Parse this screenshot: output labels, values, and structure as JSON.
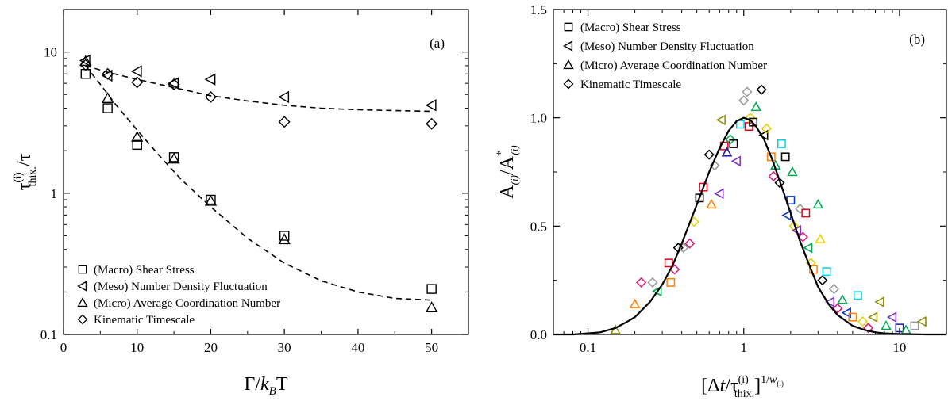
{
  "chart_data": [
    {
      "type": "scatter",
      "panel_label": "(a)",
      "xlabel": {
        "main": "Γ/",
        "k": "k",
        "sub": "B",
        "end": "T"
      },
      "ylabel": {
        "main": "τ",
        "sup": "(i)",
        "sub": "thix.",
        "end": "/τ"
      },
      "xlim": [
        0,
        55
      ],
      "ylim": [
        0.1,
        20
      ],
      "yscale": "log",
      "xticks": [
        0,
        10,
        20,
        30,
        40,
        50
      ],
      "xtick_labels": [
        "0",
        "10",
        "20",
        "30",
        "40",
        "50"
      ],
      "yticks": [
        0.1,
        1,
        10
      ],
      "ytick_labels": [
        "0.1",
        "1",
        "10"
      ],
      "legend_position": "bottom-left",
      "series": [
        {
          "name": "(Macro) Shear Stress",
          "marker": "square",
          "x": [
            3,
            6,
            10,
            15,
            20,
            30,
            50
          ],
          "y": [
            7.0,
            4.0,
            2.2,
            1.8,
            0.9,
            0.5,
            0.21
          ]
        },
        {
          "name": "(Meso) Number Density Fluctuation",
          "marker": "triangle-left",
          "x": [
            3,
            6,
            10,
            15,
            20,
            30,
            50
          ],
          "y": [
            8.7,
            6.8,
            7.3,
            6.0,
            6.4,
            4.8,
            4.2
          ]
        },
        {
          "name": "(Micro) Average Coordination Number",
          "marker": "triangle-up",
          "x": [
            3,
            6,
            10,
            15,
            20,
            30,
            50
          ],
          "y": [
            8.6,
            4.7,
            2.5,
            1.75,
            0.88,
            0.47,
            0.155
          ]
        },
        {
          "name": "Kinematic Timescale",
          "marker": "diamond",
          "x": [
            3,
            6,
            10,
            15,
            20,
            30,
            50
          ],
          "y": [
            8.1,
            7.0,
            6.1,
            5.9,
            4.8,
            3.2,
            3.1
          ]
        }
      ],
      "fits": [
        {
          "style": "dashed",
          "x": [
            3,
            5,
            7,
            10,
            13,
            16,
            20,
            25,
            30,
            35,
            40,
            45,
            50
          ],
          "y": [
            8.0,
            5.9,
            4.3,
            2.8,
            1.85,
            1.25,
            0.8,
            0.48,
            0.32,
            0.24,
            0.2,
            0.18,
            0.175
          ]
        },
        {
          "style": "dashed",
          "x": [
            3,
            6,
            10,
            15,
            20,
            25,
            30,
            35,
            40,
            45,
            50
          ],
          "y": [
            8.0,
            7.2,
            6.4,
            5.6,
            4.9,
            4.5,
            4.2,
            4.0,
            3.9,
            3.85,
            3.8
          ]
        }
      ]
    },
    {
      "type": "scatter",
      "panel_label": "(b)",
      "xlabel": {
        "open": "[Δ",
        "t": "t",
        "mid": "/τ",
        "sup": "(i)",
        "sub": "thix.",
        "close": "]",
        "exp": "1/",
        "w": "w",
        "wsub": "(i)"
      },
      "ylabel": {
        "A": "A",
        "sub1": "(i)",
        "slash": "/A",
        "star": "*",
        "sub2": "(i)"
      },
      "xlim": [
        0.06,
        20
      ],
      "xscale": "log",
      "ylim": [
        0,
        1.5
      ],
      "xticks": [
        0.1,
        1,
        10
      ],
      "xtick_labels": [
        "0.1",
        "1",
        "10"
      ],
      "yticks": [
        0,
        0.5,
        1.0,
        1.5
      ],
      "ytick_labels": [
        "0.0",
        "0.5",
        "1.0",
        "1.5"
      ],
      "legend_position": "top-left",
      "legend": [
        {
          "name": "(Macro) Shear Stress",
          "marker": "square"
        },
        {
          "name": "(Meso) Number Density Fluctuation",
          "marker": "triangle-left"
        },
        {
          "name": "(Micro) Average Coordination Number",
          "marker": "triangle-up"
        },
        {
          "name": "Kinematic Timescale",
          "marker": "diamond"
        }
      ],
      "master_curve": {
        "style": "solid",
        "x": [
          0.06,
          0.08,
          0.1,
          0.12,
          0.15,
          0.18,
          0.2,
          0.25,
          0.3,
          0.35,
          0.4,
          0.5,
          0.6,
          0.7,
          0.8,
          0.9,
          1.0,
          1.1,
          1.2,
          1.35,
          1.5,
          1.7,
          2.0,
          2.3,
          2.6,
          3.0,
          3.5,
          4.0,
          5.0,
          6.0,
          7.0,
          8.0,
          10.0,
          12.0,
          15.0,
          20.0
        ],
        "y": [
          0.0,
          0.0,
          0.005,
          0.01,
          0.03,
          0.06,
          0.08,
          0.15,
          0.23,
          0.32,
          0.42,
          0.6,
          0.75,
          0.86,
          0.94,
          0.985,
          1.0,
          0.99,
          0.96,
          0.9,
          0.82,
          0.71,
          0.56,
          0.43,
          0.33,
          0.22,
          0.14,
          0.09,
          0.04,
          0.02,
          0.01,
          0.005,
          0.002,
          0.001,
          0.0,
          0.0
        ]
      },
      "scatter_colors": [
        "#000000",
        "#e6001a",
        "#0033cc",
        "#00a650",
        "#ff7f00",
        "#00d0e8",
        "#e8d000",
        "#d4187c",
        "#7b2fbe",
        "#8a8a00",
        "#999999",
        "#1a1a9a"
      ],
      "scatter_points": [
        {
          "x": 0.15,
          "y": 0.02,
          "c": 9,
          "m": "triangle-up"
        },
        {
          "x": 0.2,
          "y": 0.14,
          "c": 4,
          "m": "triangle-up"
        },
        {
          "x": 0.22,
          "y": 0.24,
          "c": 7,
          "m": "diamond"
        },
        {
          "x": 0.26,
          "y": 0.24,
          "c": 10,
          "m": "diamond"
        },
        {
          "x": 0.28,
          "y": 0.2,
          "c": 3,
          "m": "triangle-left"
        },
        {
          "x": 0.33,
          "y": 0.33,
          "c": 1,
          "m": "square"
        },
        {
          "x": 0.34,
          "y": 0.24,
          "c": 4,
          "m": "square"
        },
        {
          "x": 0.36,
          "y": 0.3,
          "c": 7,
          "m": "diamond"
        },
        {
          "x": 0.38,
          "y": 0.4,
          "c": 0,
          "m": "diamond"
        },
        {
          "x": 0.41,
          "y": 0.4,
          "c": 10,
          "m": "diamond"
        },
        {
          "x": 0.45,
          "y": 0.42,
          "c": 7,
          "m": "diamond"
        },
        {
          "x": 0.48,
          "y": 0.52,
          "c": 6,
          "m": "diamond"
        },
        {
          "x": 0.52,
          "y": 0.63,
          "c": 0,
          "m": "square"
        },
        {
          "x": 0.55,
          "y": 0.68,
          "c": 1,
          "m": "square"
        },
        {
          "x": 0.6,
          "y": 0.83,
          "c": 0,
          "m": "diamond"
        },
        {
          "x": 0.62,
          "y": 0.6,
          "c": 4,
          "m": "triangle-up"
        },
        {
          "x": 0.65,
          "y": 0.78,
          "c": 10,
          "m": "diamond"
        },
        {
          "x": 0.7,
          "y": 0.65,
          "c": 8,
          "m": "triangle-left"
        },
        {
          "x": 0.72,
          "y": 0.99,
          "c": 9,
          "m": "triangle-left"
        },
        {
          "x": 0.75,
          "y": 0.87,
          "c": 1,
          "m": "square"
        },
        {
          "x": 0.78,
          "y": 0.84,
          "c": 11,
          "m": "triangle-up"
        },
        {
          "x": 0.82,
          "y": 0.9,
          "c": 3,
          "m": "diamond"
        },
        {
          "x": 0.86,
          "y": 0.88,
          "c": 0,
          "m": "square"
        },
        {
          "x": 0.9,
          "y": 0.8,
          "c": 8,
          "m": "triangle-left"
        },
        {
          "x": 0.95,
          "y": 0.97,
          "c": 5,
          "m": "square"
        },
        {
          "x": 1.0,
          "y": 1.08,
          "c": 10,
          "m": "diamond"
        },
        {
          "x": 1.05,
          "y": 1.12,
          "c": 10,
          "m": "diamond"
        },
        {
          "x": 1.08,
          "y": 0.96,
          "c": 1,
          "m": "square"
        },
        {
          "x": 1.1,
          "y": 1.0,
          "c": 6,
          "m": "diamond"
        },
        {
          "x": 1.15,
          "y": 0.98,
          "c": 0,
          "m": "square"
        },
        {
          "x": 1.2,
          "y": 1.05,
          "c": 3,
          "m": "triangle-up"
        },
        {
          "x": 1.3,
          "y": 1.13,
          "c": 0,
          "m": "diamond"
        },
        {
          "x": 1.35,
          "y": 0.92,
          "c": 0,
          "m": "triangle-left"
        },
        {
          "x": 1.4,
          "y": 0.95,
          "c": 6,
          "m": "diamond"
        },
        {
          "x": 1.5,
          "y": 0.82,
          "c": 4,
          "m": "square"
        },
        {
          "x": 1.55,
          "y": 0.73,
          "c": 7,
          "m": "diamond"
        },
        {
          "x": 1.6,
          "y": 0.78,
          "c": 3,
          "m": "triangle-up"
        },
        {
          "x": 1.7,
          "y": 0.7,
          "c": 0,
          "m": "diamond"
        },
        {
          "x": 1.75,
          "y": 0.88,
          "c": 5,
          "m": "square"
        },
        {
          "x": 1.85,
          "y": 0.82,
          "c": 0,
          "m": "square"
        },
        {
          "x": 1.9,
          "y": 0.55,
          "c": 2,
          "m": "triangle-left"
        },
        {
          "x": 2.0,
          "y": 0.62,
          "c": 2,
          "m": "square"
        },
        {
          "x": 2.05,
          "y": 0.75,
          "c": 3,
          "m": "triangle-up"
        },
        {
          "x": 2.1,
          "y": 0.5,
          "c": 6,
          "m": "diamond"
        },
        {
          "x": 2.2,
          "y": 0.48,
          "c": 8,
          "m": "triangle-left"
        },
        {
          "x": 2.3,
          "y": 0.58,
          "c": 10,
          "m": "diamond"
        },
        {
          "x": 2.4,
          "y": 0.45,
          "c": 7,
          "m": "diamond"
        },
        {
          "x": 2.5,
          "y": 0.56,
          "c": 1,
          "m": "square"
        },
        {
          "x": 2.6,
          "y": 0.4,
          "c": 3,
          "m": "triangle-left"
        },
        {
          "x": 2.7,
          "y": 0.33,
          "c": 6,
          "m": "diamond"
        },
        {
          "x": 2.8,
          "y": 0.3,
          "c": 4,
          "m": "square"
        },
        {
          "x": 3.0,
          "y": 0.6,
          "c": 3,
          "m": "triangle-up"
        },
        {
          "x": 3.1,
          "y": 0.44,
          "c": 6,
          "m": "triangle-up"
        },
        {
          "x": 3.2,
          "y": 0.25,
          "c": 0,
          "m": "diamond"
        },
        {
          "x": 3.4,
          "y": 0.29,
          "c": 5,
          "m": "square"
        },
        {
          "x": 3.6,
          "y": 0.15,
          "c": 8,
          "m": "triangle-left"
        },
        {
          "x": 3.8,
          "y": 0.21,
          "c": 10,
          "m": "diamond"
        },
        {
          "x": 4.0,
          "y": 0.12,
          "c": 7,
          "m": "diamond"
        },
        {
          "x": 4.3,
          "y": 0.16,
          "c": 3,
          "m": "triangle-up"
        },
        {
          "x": 4.6,
          "y": 0.1,
          "c": 2,
          "m": "triangle-left"
        },
        {
          "x": 5.0,
          "y": 0.08,
          "c": 4,
          "m": "square"
        },
        {
          "x": 5.4,
          "y": 0.18,
          "c": 5,
          "m": "square"
        },
        {
          "x": 5.8,
          "y": 0.06,
          "c": 6,
          "m": "diamond"
        },
        {
          "x": 6.3,
          "y": 0.03,
          "c": 7,
          "m": "diamond"
        },
        {
          "x": 6.8,
          "y": 0.08,
          "c": 9,
          "m": "triangle-left"
        },
        {
          "x": 7.5,
          "y": 0.15,
          "c": 9,
          "m": "triangle-left"
        },
        {
          "x": 8.2,
          "y": 0.04,
          "c": 3,
          "m": "triangle-up"
        },
        {
          "x": 9.0,
          "y": 0.08,
          "c": 8,
          "m": "triangle-left"
        },
        {
          "x": 10.0,
          "y": 0.03,
          "c": 11,
          "m": "square"
        },
        {
          "x": 11.0,
          "y": 0.02,
          "c": 3,
          "m": "triangle-up"
        },
        {
          "x": 12.5,
          "y": 0.04,
          "c": 10,
          "m": "square"
        },
        {
          "x": 14.0,
          "y": 0.06,
          "c": 9,
          "m": "triangle-left"
        }
      ]
    }
  ]
}
